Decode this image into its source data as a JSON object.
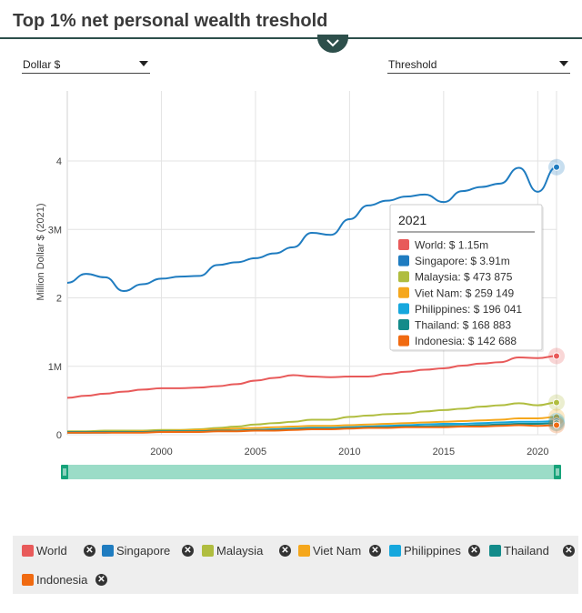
{
  "title": "Top 1% net personal wealth treshold",
  "currency_select": {
    "value": "Dollar $"
  },
  "measure_select": {
    "value": "Threshold"
  },
  "chart_data": {
    "type": "line",
    "ylabel": "Million Dollar $ (2021)",
    "xlim": [
      1995,
      2021
    ],
    "ylim": [
      0,
      4
    ],
    "x_ticks": [
      {
        "value": 2000,
        "label": "2000"
      },
      {
        "value": 2005,
        "label": "2005"
      },
      {
        "value": 2010,
        "label": "2010"
      },
      {
        "value": 2015,
        "label": "2015"
      },
      {
        "value": 2020,
        "label": "2020"
      }
    ],
    "y_ticks": [
      {
        "value": 0,
        "label": "0"
      },
      {
        "value": 1,
        "label": "1M"
      },
      {
        "value": 2,
        "label": "2"
      },
      {
        "value": 3,
        "label": "3M"
      },
      {
        "value": 4,
        "label": "4"
      }
    ],
    "x": [
      1995,
      1996,
      1997,
      1998,
      1999,
      2000,
      2001,
      2002,
      2003,
      2004,
      2005,
      2006,
      2007,
      2008,
      2009,
      2010,
      2011,
      2012,
      2013,
      2014,
      2015,
      2016,
      2017,
      2018,
      2019,
      2020,
      2021
    ],
    "series": [
      {
        "name": "World",
        "color": "#e85a5a",
        "values": [
          0.54,
          0.57,
          0.6,
          0.63,
          0.66,
          0.68,
          0.68,
          0.69,
          0.71,
          0.74,
          0.79,
          0.83,
          0.87,
          0.85,
          0.84,
          0.85,
          0.85,
          0.89,
          0.92,
          0.95,
          0.97,
          1.01,
          1.04,
          1.06,
          1.13,
          1.12,
          1.15
        ]
      },
      {
        "name": "Singapore",
        "color": "#1f7cc0",
        "values": [
          2.22,
          2.35,
          2.3,
          2.1,
          2.2,
          2.28,
          2.31,
          2.32,
          2.48,
          2.52,
          2.58,
          2.65,
          2.74,
          2.95,
          2.92,
          3.15,
          3.35,
          3.42,
          3.48,
          3.51,
          3.4,
          3.56,
          3.62,
          3.67,
          3.9,
          3.55,
          3.91
        ]
      },
      {
        "name": "Malaysia",
        "color": "#b0bd3f",
        "values": [
          0.05,
          0.05,
          0.06,
          0.06,
          0.06,
          0.07,
          0.07,
          0.08,
          0.1,
          0.12,
          0.15,
          0.17,
          0.19,
          0.22,
          0.22,
          0.26,
          0.28,
          0.3,
          0.31,
          0.34,
          0.36,
          0.38,
          0.41,
          0.43,
          0.46,
          0.43,
          0.47
        ]
      },
      {
        "name": "Viet Nam",
        "color": "#f5a71c",
        "values": [
          0.03,
          0.03,
          0.04,
          0.04,
          0.05,
          0.05,
          0.06,
          0.07,
          0.08,
          0.09,
          0.1,
          0.11,
          0.12,
          0.13,
          0.13,
          0.14,
          0.15,
          0.16,
          0.17,
          0.18,
          0.19,
          0.2,
          0.21,
          0.22,
          0.24,
          0.24,
          0.26
        ]
      },
      {
        "name": "Philippines",
        "color": "#16a7dd",
        "values": [
          0.03,
          0.03,
          0.03,
          0.04,
          0.04,
          0.04,
          0.05,
          0.05,
          0.06,
          0.06,
          0.07,
          0.08,
          0.09,
          0.1,
          0.1,
          0.11,
          0.12,
          0.13,
          0.14,
          0.15,
          0.16,
          0.16,
          0.17,
          0.18,
          0.19,
          0.19,
          0.2
        ]
      },
      {
        "name": "Thailand",
        "color": "#138b8a",
        "values": [
          0.04,
          0.04,
          0.04,
          0.04,
          0.04,
          0.05,
          0.05,
          0.05,
          0.06,
          0.06,
          0.07,
          0.07,
          0.08,
          0.09,
          0.09,
          0.1,
          0.11,
          0.11,
          0.12,
          0.12,
          0.13,
          0.13,
          0.14,
          0.15,
          0.16,
          0.16,
          0.17
        ]
      },
      {
        "name": "Indonesia",
        "color": "#f06a11",
        "values": [
          0.03,
          0.03,
          0.03,
          0.03,
          0.03,
          0.04,
          0.04,
          0.04,
          0.05,
          0.05,
          0.06,
          0.06,
          0.07,
          0.08,
          0.08,
          0.09,
          0.1,
          0.1,
          0.11,
          0.11,
          0.11,
          0.12,
          0.12,
          0.13,
          0.14,
          0.13,
          0.14
        ]
      }
    ],
    "tooltip": {
      "title": "2021",
      "rows": [
        {
          "label": "World: $ 1.15m",
          "color": "#e85a5a"
        },
        {
          "label": "Singapore: $ 3.91m",
          "color": "#1f7cc0"
        },
        {
          "label": "Malaysia: $ 473 875",
          "color": "#b0bd3f"
        },
        {
          "label": "Viet Nam: $ 259 149",
          "color": "#f5a71c"
        },
        {
          "label": "Philippines: $ 196 041",
          "color": "#16a7dd"
        },
        {
          "label": "Thailand: $ 168 883",
          "color": "#138b8a"
        },
        {
          "label": "Indonesia: $ 142 688",
          "color": "#f06a11"
        }
      ]
    }
  },
  "range_slider": {
    "start": 0,
    "end": 1,
    "color": "#9bdcc7",
    "handle_color": "#17a37a"
  },
  "legend": [
    {
      "name": "World",
      "color": "#e85a5a",
      "remove_icon": "close-icon"
    },
    {
      "name": "Singapore",
      "color": "#1f7cc0",
      "remove_icon": "close-icon"
    },
    {
      "name": "Malaysia",
      "color": "#b0bd3f",
      "remove_icon": "close-icon"
    },
    {
      "name": "Viet Nam",
      "color": "#f5a71c",
      "remove_icon": "close-icon"
    },
    {
      "name": "Philippines",
      "color": "#16a7dd",
      "remove_icon": "close-icon"
    },
    {
      "name": "Thailand",
      "color": "#138b8a",
      "remove_icon": "close-icon"
    },
    {
      "name": "Indonesia",
      "color": "#f06a11",
      "remove_icon": "close-icon"
    }
  ]
}
